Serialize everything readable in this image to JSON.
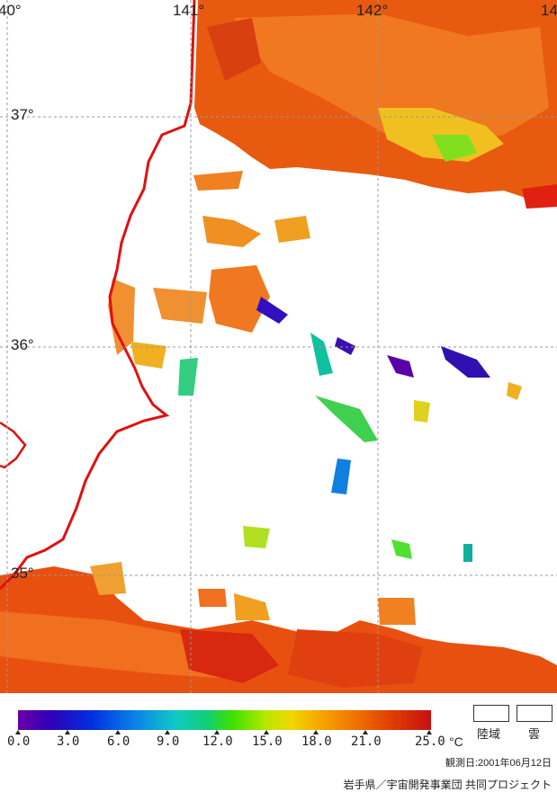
{
  "map": {
    "lon_labels": [
      "40°",
      "141°",
      "142°",
      "14"
    ],
    "lat_labels": [
      "37°",
      "36°",
      "35°"
    ]
  },
  "colorbar": {
    "ticks": [
      "0.0",
      "3.0",
      "6.0",
      "9.0",
      "12.0",
      "15.0",
      "18.0",
      "21.0",
      "25.0"
    ],
    "unit": "°C"
  },
  "legend": {
    "land_label": "陸域",
    "cloud_label": "雲"
  },
  "observation_date": "観測日:2001年06月12日",
  "credit": "岩手県／宇宙開発事業団 共同プロジェクト",
  "colors": {
    "coast": "#e01010",
    "warm": "#e85000",
    "grid": "#999999"
  }
}
